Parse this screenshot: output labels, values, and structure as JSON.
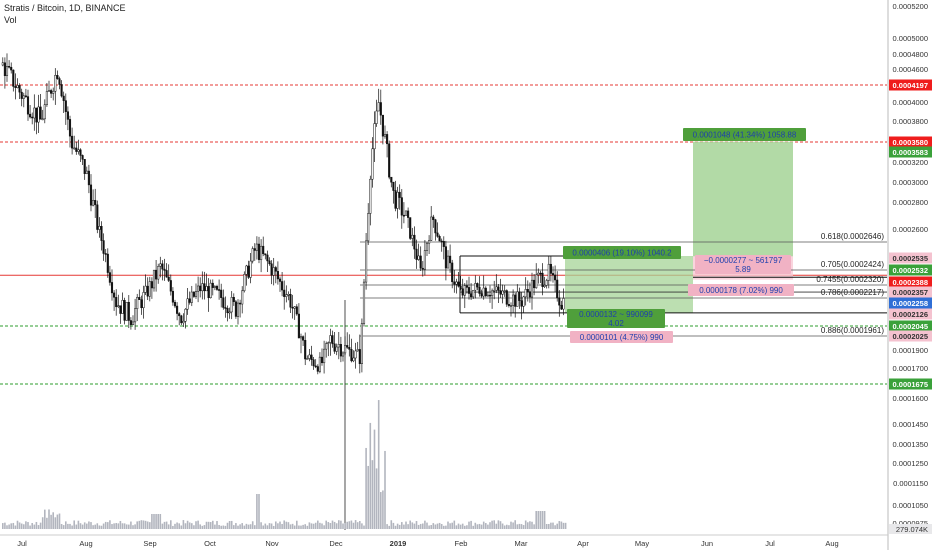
{
  "header": {
    "title": "Stratis / Bitcoin, 1D, BINANCE",
    "vol_label": "Vol"
  },
  "colors": {
    "candle": "#111111",
    "resistance": "#e53935",
    "support": "#2e9e2e",
    "target_fill": "#a5d497",
    "volume": "#b2b5be",
    "badge_red": "#ef1d1d",
    "badge_green": "#3aa13a",
    "badge_blue": "#2f6fd6",
    "measure_red": "#f4c2cf"
  },
  "chart_data": {
    "type": "candlestick",
    "title": "Stratis / Bitcoin, 1D, BINANCE",
    "x_ticks": [
      "Jul",
      "Aug",
      "Sep",
      "Oct",
      "Nov",
      "Dec",
      "2019",
      "Feb",
      "Mar",
      "Apr",
      "May",
      "Jun",
      "Jul",
      "Aug"
    ],
    "price_ticks": [
      "0.0005200",
      "0.0005000",
      "0.0004800",
      "0.0004600",
      "0.0004400",
      "0.0004000",
      "0.0003800",
      "0.0003400",
      "0.0003200",
      "0.0003000",
      "0.0002800",
      "0.0002600",
      "0.0002200",
      "0.0001900",
      "0.0001700",
      "0.0001600",
      "0.0001450",
      "0.0001350",
      "0.0001250",
      "0.0001150",
      "0.0001050",
      "0.0000975"
    ],
    "resistance_levels": [
      0.0004197,
      0.000358,
      0.0002388
    ],
    "support_levels": [
      0.0002045,
      0.0001675
    ],
    "price_badges": [
      {
        "value": "0.0004197",
        "color": "red"
      },
      {
        "value": "0.0003580",
        "color": "red"
      },
      {
        "value": "0.0003583",
        "color": "green"
      },
      {
        "value": "0.0002535",
        "color": "measure"
      },
      {
        "value": "0.0002532",
        "color": "green"
      },
      {
        "value": "0.0002388",
        "color": "red"
      },
      {
        "value": "0.0002357",
        "color": "measure"
      },
      {
        "value": "0.0002258",
        "color": "blue"
      },
      {
        "value": "0.0002126",
        "color": "measure"
      },
      {
        "value": "0.0002045",
        "color": "green"
      },
      {
        "value": "0.0002025",
        "color": "measure"
      },
      {
        "value": "0.0001675",
        "color": "green"
      }
    ],
    "fib_levels": [
      {
        "label": "0.618(0.0002646)",
        "value": 0.0002646
      },
      {
        "label": "0.705(0.0002424)",
        "value": 0.0002424
      },
      {
        "label": "0.7455(0.0002320)",
        "value": 0.000232
      },
      {
        "label": "0.786(0.0002217)",
        "value": 0.0002217
      },
      {
        "label": "0.886(0.0001961)",
        "value": 0.0001961
      }
    ],
    "measure_boxes": [
      {
        "text": "0.0001048 (41.34%) 1058.88",
        "style": "green"
      },
      {
        "text": "0.0000406 (19.10%) 1040.2",
        "style": "green"
      },
      {
        "text": "−0.0000277 ~ 561797",
        "text2": "5.89",
        "style": "red"
      },
      {
        "text": "0.0000178 (7.02%) 990",
        "style": "red"
      },
      {
        "text": "0.0000132 ~ 990099",
        "text2": "4.02",
        "style": "green"
      },
      {
        "text": "0.0000101 (4.75%) 990",
        "style": "red"
      }
    ],
    "volume_label": "279.074K"
  }
}
